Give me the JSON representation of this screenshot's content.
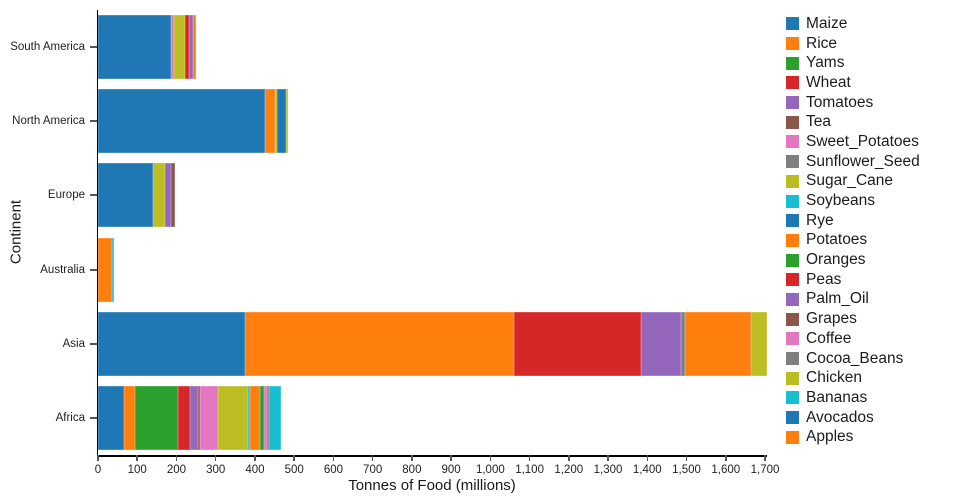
{
  "chart_data": {
    "type": "bar",
    "orientation": "horizontal",
    "stacked": true,
    "title": "",
    "xlabel": "Tonnes of Food (millions)",
    "ylabel": "Continent",
    "xlim": [
      0,
      1705
    ],
    "grid": false,
    "legend_position": "right",
    "xticks": [
      0,
      100,
      200,
      300,
      400,
      500,
      600,
      700,
      800,
      900,
      1000,
      1100,
      1200,
      1300,
      1400,
      1500,
      1600,
      1700
    ],
    "xtick_labels": [
      "0",
      "100",
      "200",
      "300",
      "400",
      "500",
      "600",
      "700",
      "800",
      "900",
      "1,000",
      "1,100",
      "1,200",
      "1,300",
      "1,400",
      "1,500",
      "1,600",
      "1,700"
    ],
    "categories": [
      "South America",
      "North America",
      "Europe",
      "Australia",
      "Asia",
      "Africa"
    ],
    "legend_items": [
      "Maize",
      "Rice",
      "Yams",
      "Wheat",
      "Tomatoes",
      "Tea",
      "Sweet_Potatoes",
      "Sunflower_Seed",
      "Sugar_Cane",
      "Soybeans",
      "Rye",
      "Potatoes",
      "Oranges",
      "Peas",
      "Palm_Oil",
      "Grapes",
      "Coffee",
      "Cocoa_Beans",
      "Chicken",
      "Bananas",
      "Avocados",
      "Apples"
    ],
    "colors": {
      "Maize": "#1f77b4",
      "Rice": "#ff7f0e",
      "Yams": "#2ca02c",
      "Wheat": "#d62728",
      "Tomatoes": "#9467bd",
      "Tea": "#8c564b",
      "Sweet_Potatoes": "#e377c2",
      "Sunflower_Seed": "#7f7f7f",
      "Sugar_Cane": "#bcbd22",
      "Soybeans": "#17becf",
      "Rye": "#1f77b4",
      "Potatoes": "#ff7f0e",
      "Oranges": "#2ca02c",
      "Peas": "#d62728",
      "Palm_Oil": "#9467bd",
      "Grapes": "#8c564b",
      "Coffee": "#e377c2",
      "Cocoa_Beans": "#7f7f7f",
      "Chicken": "#bcbd22",
      "Bananas": "#17becf",
      "Avocados": "#1f77b4",
      "Apples": "#ff7f0e"
    },
    "bars": [
      {
        "continent": "South America",
        "segments": [
          {
            "crop": "Maize",
            "value": 185
          },
          {
            "crop": "Sweet_Potatoes",
            "value": 8
          },
          {
            "crop": "Sugar_Cane",
            "value": 30
          },
          {
            "crop": "Peas",
            "value": 10
          },
          {
            "crop": "Palm_Oil",
            "value": 8
          },
          {
            "crop": "Apples",
            "value": 10
          }
        ]
      },
      {
        "continent": "North America",
        "segments": [
          {
            "crop": "Maize",
            "value": 425
          },
          {
            "crop": "Rice",
            "value": 25
          },
          {
            "crop": "Sugar_Cane",
            "value": 5
          },
          {
            "crop": "Rye",
            "value": 25
          },
          {
            "crop": "Chicken",
            "value": 5
          }
        ]
      },
      {
        "continent": "Europe",
        "segments": [
          {
            "crop": "Maize",
            "value": 140
          },
          {
            "crop": "Sugar_Cane",
            "value": 30
          },
          {
            "crop": "Palm_Oil",
            "value": 15
          },
          {
            "crop": "Grapes",
            "value": 10
          }
        ]
      },
      {
        "continent": "Australia",
        "segments": [
          {
            "crop": "Rice",
            "value": 35
          },
          {
            "crop": "Soybeans",
            "value": 5
          }
        ]
      },
      {
        "continent": "Asia",
        "segments": [
          {
            "crop": "Maize",
            "value": 375
          },
          {
            "crop": "Rice",
            "value": 685
          },
          {
            "crop": "Wheat",
            "value": 325
          },
          {
            "crop": "Tomatoes",
            "value": 100
          },
          {
            "crop": "Sunflower_Seed",
            "value": 10
          },
          {
            "crop": "Potatoes",
            "value": 170
          },
          {
            "crop": "Chicken",
            "value": 40
          }
        ]
      },
      {
        "continent": "Africa",
        "segments": [
          {
            "crop": "Maize",
            "value": 65
          },
          {
            "crop": "Rice",
            "value": 30
          },
          {
            "crop": "Yams",
            "value": 110
          },
          {
            "crop": "Wheat",
            "value": 30
          },
          {
            "crop": "Tomatoes",
            "value": 20
          },
          {
            "crop": "Tea",
            "value": 5
          },
          {
            "crop": "Sweet_Potatoes",
            "value": 45
          },
          {
            "crop": "Sugar_Cane",
            "value": 78
          },
          {
            "crop": "Soybeans",
            "value": 5
          },
          {
            "crop": "Potatoes",
            "value": 25
          },
          {
            "crop": "Oranges",
            "value": 10
          },
          {
            "crop": "Coffee",
            "value": 8
          },
          {
            "crop": "Cocoa_Beans",
            "value": 5
          },
          {
            "crop": "Bananas",
            "value": 30
          }
        ]
      }
    ]
  }
}
